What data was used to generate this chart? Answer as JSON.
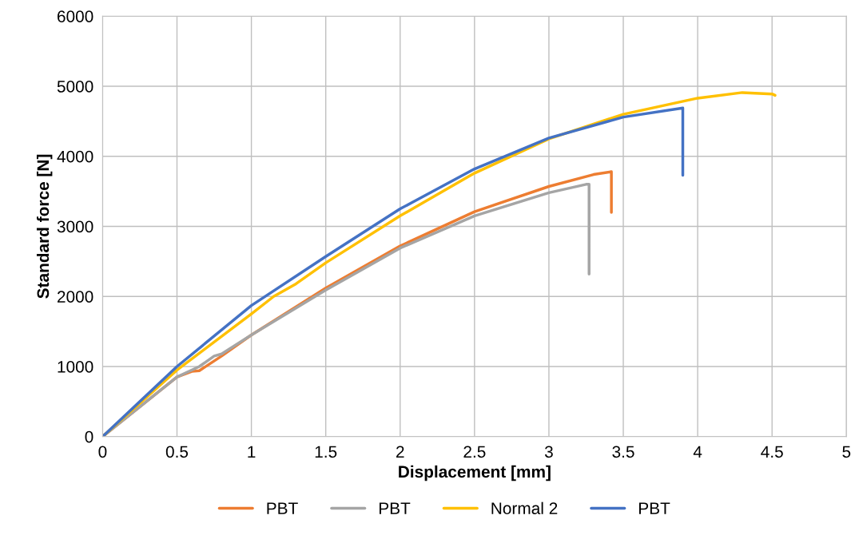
{
  "chart_data": {
    "type": "line",
    "xlabel": "Displacement [mm]",
    "ylabel": "Standard force [N]",
    "xlim": [
      0,
      5
    ],
    "xticks": [
      0,
      0.5,
      1,
      1.5,
      2,
      2.5,
      3,
      3.5,
      4,
      4.5,
      5
    ],
    "ylim": [
      0,
      6000
    ],
    "yticks": [
      0,
      1000,
      2000,
      3000,
      4000,
      5000,
      6000
    ],
    "grid": true,
    "legend": "bottom",
    "marker": "none",
    "line_style": "solid",
    "series": [
      {
        "name": "PBT",
        "color": "#ed7d31",
        "x": [
          0,
          0.5,
          0.6,
          0.65,
          0.8,
          1,
          1.5,
          2,
          2.5,
          3,
          3.3,
          3.42,
          3.42
        ],
        "values": [
          0,
          850,
          930,
          940,
          1150,
          1450,
          2120,
          2720,
          3210,
          3570,
          3740,
          3780,
          3200
        ]
      },
      {
        "name": "PBT",
        "color": "#a5a5a5",
        "x": [
          0,
          0.5,
          0.65,
          0.75,
          0.8,
          1,
          1.5,
          2,
          2.5,
          3,
          3.25,
          3.27,
          3.27
        ],
        "values": [
          0,
          850,
          1000,
          1150,
          1180,
          1450,
          2090,
          2690,
          3150,
          3480,
          3600,
          3600,
          2320
        ]
      },
      {
        "name": "Normal 2",
        "color": "#ffc000",
        "x": [
          0,
          0.5,
          1,
          1.15,
          1.3,
          1.5,
          2,
          2.5,
          3,
          3.5,
          4,
          4.3,
          4.5,
          4.52
        ],
        "values": [
          0,
          950,
          1750,
          2000,
          2180,
          2480,
          3150,
          3760,
          4250,
          4600,
          4830,
          4910,
          4890,
          4870
        ]
      },
      {
        "name": "PBT",
        "color": "#4472c4",
        "x": [
          0,
          0.5,
          1,
          1.5,
          2,
          2.5,
          3,
          3.5,
          3.9,
          3.9
        ],
        "values": [
          0,
          1000,
          1870,
          2570,
          3250,
          3820,
          4260,
          4560,
          4690,
          3730
        ]
      }
    ]
  }
}
